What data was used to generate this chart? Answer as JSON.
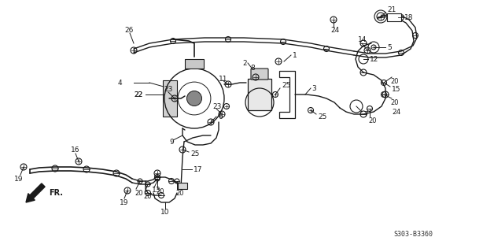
{
  "background_color": "#ffffff",
  "line_color": "#1a1a1a",
  "figsize": [
    6.28,
    3.2
  ],
  "dpi": 100,
  "diagram_code": "S303-B3360"
}
